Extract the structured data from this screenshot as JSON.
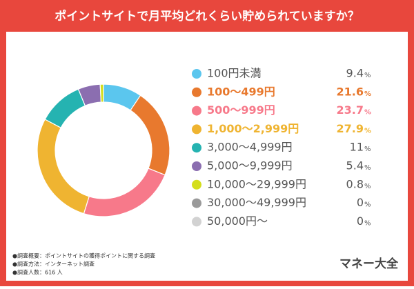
{
  "chart_data": {
    "type": "donut",
    "title": "ポイントサイトで月平均どれくらい貯められていますか？",
    "categories": [
      "100円未満",
      "100～499円",
      "500～999円",
      "1,000～2,999円",
      "3,000～4,999円",
      "5,000～9,999円",
      "10,000～29,999円",
      "30,000～49,999円",
      "50,000円～"
    ],
    "values": [
      9.4,
      21.6,
      23.7,
      27.9,
      11.0,
      5.4,
      0.8,
      0,
      0
    ],
    "unit": "%",
    "colors": [
      "#5bc6ee",
      "#e8792e",
      "#f7798a",
      "#efb431",
      "#25b3b1",
      "#8b6eb0",
      "#d4de1c",
      "#9a9a9a",
      "#d2d2d2"
    ],
    "highlight": [
      false,
      true,
      true,
      true,
      false,
      false,
      false,
      false,
      false
    ],
    "notes": [
      "●調査概要：ポイントサイトの獲得ポイントに関する調査",
      "●調査方法：インターネット調査",
      "●調査人数：616 人"
    ],
    "brand": "マネー大全"
  }
}
